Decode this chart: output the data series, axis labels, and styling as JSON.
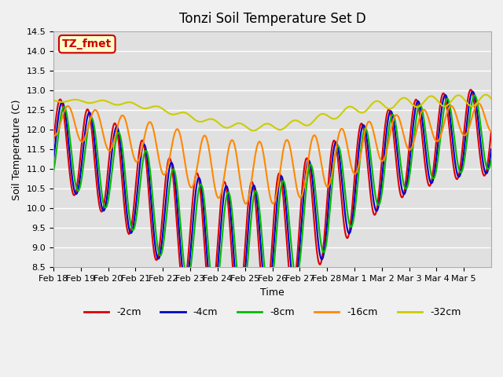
{
  "title": "Tonzi Soil Temperature Set D",
  "xlabel": "Time",
  "ylabel": "Soil Temperature (C)",
  "ylim": [
    8.5,
    14.5
  ],
  "annotation_text": "TZ_fmet",
  "annotation_bg": "#ffffcc",
  "annotation_border": "#cc0000",
  "annotation_text_color": "#cc0000",
  "series": {
    "-2cm": {
      "color": "#dd0000",
      "lw": 1.5
    },
    "-4cm": {
      "color": "#0000cc",
      "lw": 1.5
    },
    "-8cm": {
      "color": "#00bb00",
      "lw": 1.5
    },
    "-16cm": {
      "color": "#ff8800",
      "lw": 1.5
    },
    "-32cm": {
      "color": "#cccc00",
      "lw": 1.5
    }
  },
  "xtick_labels": [
    "Feb 18",
    "Feb 19",
    "Feb 20",
    "Feb 21",
    "Feb 22",
    "Feb 23",
    "Feb 24",
    "Feb 25",
    "Feb 26",
    "Feb 27",
    "Feb 28",
    "Mar 1",
    "Mar 2",
    "Mar 3",
    "Mar 4",
    "Mar 5"
  ],
  "n_days": 16,
  "title_fontsize": 12,
  "axis_fontsize": 9,
  "tick_fontsize": 8,
  "legend_fontsize": 9
}
